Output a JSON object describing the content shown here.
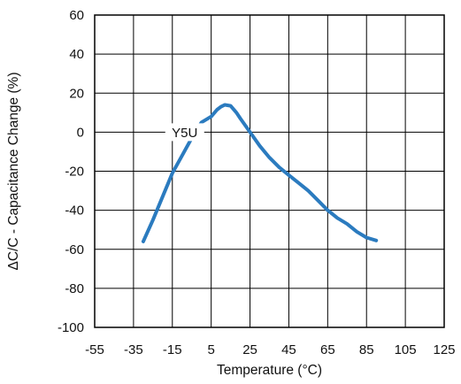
{
  "chart_data": {
    "type": "line",
    "title": "",
    "xlabel": "Temperature (°C)",
    "ylabel": "ΔC/C - Capacitance Change (%)",
    "xlim": [
      -55,
      125
    ],
    "ylim": [
      -100,
      60
    ],
    "xticks": [
      "-55",
      "-35",
      "-15",
      "5",
      "25",
      "45",
      "65",
      "85",
      "105",
      "125"
    ],
    "yticks": [
      "60",
      "40",
      "20",
      "0",
      "-20",
      "-40",
      "-60",
      "-80",
      "-100"
    ],
    "grid": true,
    "series": [
      {
        "name": "Y5U",
        "color": "#2b7bbf",
        "x": [
          -30,
          -25,
          -20,
          -15,
          -10,
          -5,
          0,
          5,
          8,
          10,
          12,
          15,
          18,
          20,
          25,
          30,
          35,
          40,
          45,
          50,
          55,
          60,
          65,
          70,
          75,
          80,
          85,
          90
        ],
        "y": [
          -56,
          -45,
          -33,
          -21,
          -12,
          -3,
          5,
          8,
          11.5,
          13,
          14,
          13.5,
          10,
          7,
          0,
          -7,
          -13,
          -18,
          -22,
          -26,
          -30,
          -35,
          -40,
          -44,
          -47,
          -51,
          -54,
          -55.5
        ]
      }
    ]
  }
}
